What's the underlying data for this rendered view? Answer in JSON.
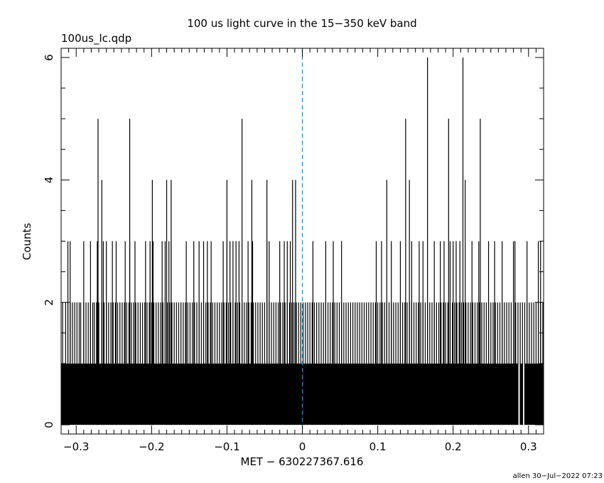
{
  "chart_data": {
    "type": "bar",
    "title": "100 us light curve in the 15−350 keV band",
    "subtitle": "100us_lc.qdp",
    "xlabel": "MET − 630227367.616",
    "ylabel": "Counts",
    "footer": "allen 30−Jul−2022 07:23",
    "xlim": [
      -0.32,
      0.32
    ],
    "ylim": [
      -0.15,
      6.15
    ],
    "bin_width": 0.0001,
    "xticks": [
      -0.3,
      -0.2,
      -0.1,
      0,
      0.1,
      0.2,
      0.3
    ],
    "xtick_labels": [
      "−0.3",
      "−0.2",
      "−0.1",
      "0",
      "0.1",
      "0.2",
      "0.3"
    ],
    "yticks": [
      0,
      2,
      4,
      6
    ],
    "ytick_labels": [
      "0",
      "2",
      "4",
      "6"
    ],
    "marker_line_x": 0,
    "colors": {
      "bars": "#000000",
      "marker_line": "#1f8fd0",
      "axes": "#000000"
    },
    "baseline_count": 1,
    "zero_count_x": [
      0.287,
      0.288,
      0.293,
      0.294
    ],
    "count_2_x": [
      -0.318,
      -0.314,
      -0.311,
      -0.308,
      -0.305,
      -0.302,
      -0.299,
      -0.296,
      -0.294,
      -0.29,
      -0.287,
      -0.284,
      -0.281,
      -0.278,
      -0.276,
      -0.273,
      -0.27,
      -0.266,
      -0.263,
      -0.26,
      -0.257,
      -0.254,
      -0.251,
      -0.248,
      -0.245,
      -0.242,
      -0.239,
      -0.236,
      -0.233,
      -0.23,
      -0.227,
      -0.224,
      -0.221,
      -0.218,
      -0.215,
      -0.212,
      -0.209,
      -0.206,
      -0.203,
      -0.2,
      -0.197,
      -0.194,
      -0.191,
      -0.188,
      -0.185,
      -0.182,
      -0.179,
      -0.176,
      -0.173,
      -0.17,
      -0.167,
      -0.164,
      -0.161,
      -0.158,
      -0.155,
      -0.152,
      -0.149,
      -0.146,
      -0.143,
      -0.14,
      -0.137,
      -0.134,
      -0.131,
      -0.128,
      -0.125,
      -0.122,
      -0.119,
      -0.116,
      -0.113,
      -0.11,
      -0.107,
      -0.104,
      -0.101,
      -0.098,
      -0.095,
      -0.092,
      -0.089,
      -0.086,
      -0.083,
      -0.08,
      -0.077,
      -0.074,
      -0.071,
      -0.068,
      -0.065,
      -0.062,
      -0.059,
      -0.056,
      -0.053,
      -0.05,
      -0.047,
      -0.044,
      -0.041,
      -0.038,
      -0.035,
      -0.032,
      -0.029,
      -0.026,
      -0.023,
      -0.02,
      -0.017,
      -0.014,
      -0.011,
      -0.008,
      -0.005,
      -0.002,
      0.001,
      0.004,
      0.007,
      0.01,
      0.013,
      0.016,
      0.019,
      0.022,
      0.025,
      0.028,
      0.031,
      0.034,
      0.037,
      0.04,
      0.043,
      0.046,
      0.049,
      0.052,
      0.055,
      0.058,
      0.061,
      0.064,
      0.067,
      0.07,
      0.073,
      0.076,
      0.079,
      0.082,
      0.085,
      0.088,
      0.091,
      0.094,
      0.097,
      0.1,
      0.103,
      0.106,
      0.109,
      0.112,
      0.115,
      0.118,
      0.121,
      0.124,
      0.127,
      0.13,
      0.133,
      0.136,
      0.139,
      0.142,
      0.145,
      0.148,
      0.151,
      0.154,
      0.157,
      0.16,
      0.163,
      0.166,
      0.169,
      0.172,
      0.175,
      0.178,
      0.181,
      0.184,
      0.187,
      0.19,
      0.193,
      0.196,
      0.199,
      0.202,
      0.205,
      0.208,
      0.211,
      0.214,
      0.217,
      0.22,
      0.223,
      0.226,
      0.229,
      0.232,
      0.235,
      0.238,
      0.241,
      0.244,
      0.247,
      0.25,
      0.253,
      0.256,
      0.259,
      0.262,
      0.265,
      0.268,
      0.271,
      0.274,
      0.277,
      0.28,
      0.283,
      0.286,
      0.289,
      0.292,
      0.295,
      0.298,
      0.301,
      0.304,
      0.307,
      0.31,
      0.313,
      0.316,
      0.319
    ],
    "count_3_x": [
      -0.311,
      -0.308,
      -0.29,
      -0.281,
      -0.272,
      -0.264,
      -0.26,
      -0.252,
      -0.247,
      -0.235,
      -0.229,
      -0.222,
      -0.208,
      -0.202,
      -0.198,
      -0.186,
      -0.182,
      -0.177,
      -0.174,
      -0.154,
      -0.144,
      -0.137,
      -0.131,
      -0.126,
      -0.121,
      -0.105,
      -0.1,
      -0.096,
      -0.092,
      -0.088,
      -0.084,
      -0.072,
      -0.066,
      -0.047,
      -0.044,
      -0.03,
      -0.024,
      -0.02,
      -0.016,
      0.014,
      0.031,
      0.041,
      0.052,
      0.098,
      0.105,
      0.118,
      0.13,
      0.145,
      0.155,
      0.16,
      0.175,
      0.183,
      0.188,
      0.196,
      0.2,
      0.204,
      0.209,
      0.225,
      0.234,
      0.247,
      0.255,
      0.265,
      0.28,
      0.282,
      0.298,
      0.313,
      0.316
    ],
    "count_4_x": [
      -0.266,
      -0.199,
      -0.18,
      -0.174,
      -0.1,
      -0.067,
      -0.047,
      -0.013,
      -0.009,
      0.112,
      0.142,
      0.216
    ],
    "count_5_x": [
      -0.271,
      -0.229,
      -0.08,
      0.137,
      0.194,
      0.236
    ],
    "count_6_x": [
      0.166,
      0.213
    ]
  }
}
